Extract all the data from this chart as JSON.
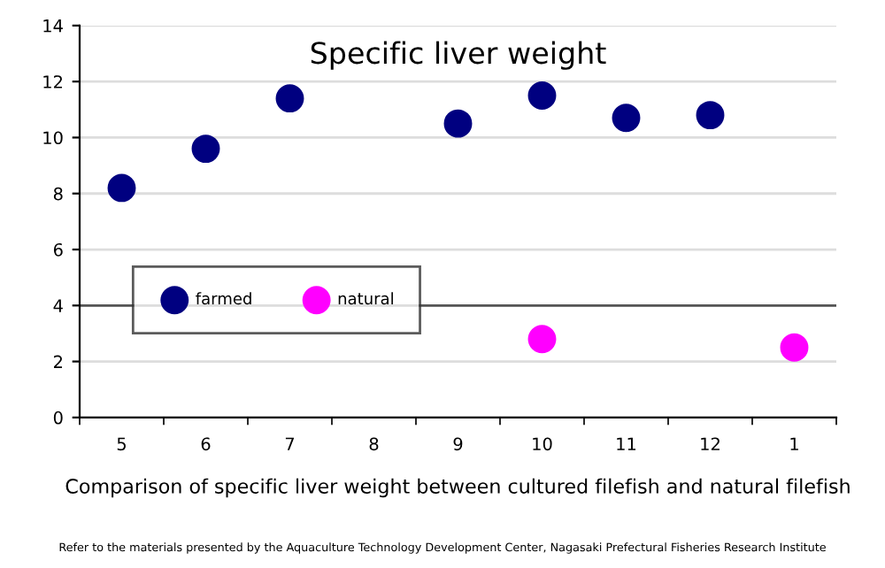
{
  "chart_data": {
    "type": "scatter",
    "title": "Specific liver weight",
    "xlabel": "Comparison of specific liver weight between cultured filefish and natural filefish",
    "annotations": [
      "Refer to the materials presented by the Aquaculture Technology Development Center, Nagasaki Prefectural Fisheries Research Institute"
    ],
    "categories": [
      "5",
      "6",
      "7",
      "8",
      "9",
      "10",
      "11",
      "12",
      "1"
    ],
    "series": [
      {
        "name": "farmed",
        "color": "#000080",
        "values": [
          8.2,
          9.6,
          11.4,
          null,
          10.5,
          11.5,
          10.7,
          10.8,
          null
        ]
      },
      {
        "name": "natural",
        "color": "#ff00ff",
        "values": [
          null,
          null,
          null,
          null,
          null,
          2.8,
          null,
          null,
          2.5
        ]
      }
    ],
    "ylim": [
      0,
      14
    ],
    "yticks": [
      0,
      2,
      4,
      6,
      8,
      10,
      12,
      14
    ],
    "grid": "y",
    "legend": "center left",
    "marker": "circle",
    "ref_lines": [
      {
        "axis": "y",
        "value": 4,
        "color": "#555555"
      }
    ]
  }
}
